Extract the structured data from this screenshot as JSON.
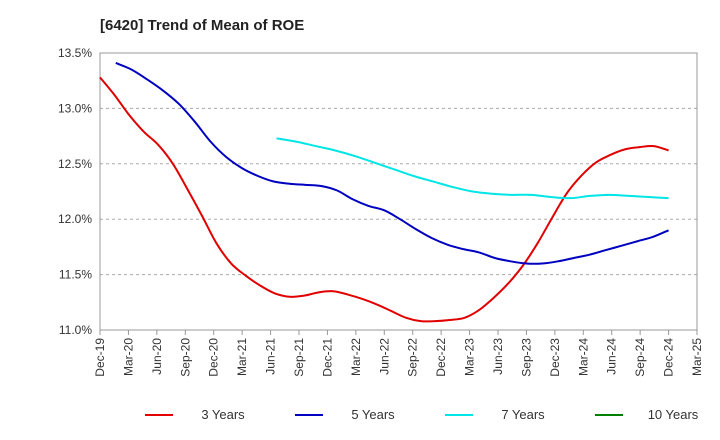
{
  "chart_data": {
    "type": "line",
    "title": "[6420]  Trend of Mean of ROE",
    "xlabel": "",
    "ylabel": "",
    "x_ticks": [
      "Dec-19",
      "Mar-20",
      "Jun-20",
      "Sep-20",
      "Dec-20",
      "Mar-21",
      "Jun-21",
      "Sep-21",
      "Dec-21",
      "Mar-22",
      "Jun-22",
      "Sep-22",
      "Dec-22",
      "Mar-23",
      "Jun-23",
      "Sep-23",
      "Dec-23",
      "Mar-24",
      "Jun-24",
      "Sep-24",
      "Dec-24",
      "Mar-25"
    ],
    "y_ticks": [
      "11.0%",
      "11.5%",
      "12.0%",
      "12.5%",
      "13.0%",
      "13.5%"
    ],
    "ylim": [
      11.0,
      13.5
    ],
    "grid": "horizontal dashed",
    "legend_position": "bottom",
    "series": [
      {
        "name": "3 Years",
        "color": "#e00000",
        "values": [
          13.28,
          13.12,
          12.94,
          12.79,
          12.67,
          12.5,
          12.27,
          12.03,
          11.78,
          11.6,
          11.49,
          11.4,
          11.33,
          11.3,
          11.31,
          11.34,
          11.35,
          11.32,
          11.28,
          11.23,
          11.17,
          11.11,
          11.08,
          11.08,
          11.09,
          11.11,
          11.18,
          11.29,
          11.42,
          11.58,
          11.78,
          12.01,
          12.23,
          12.39,
          12.51,
          12.58,
          12.63,
          12.65,
          12.66,
          12.62
        ]
      },
      {
        "name": "5 Years",
        "color": "#0000c0",
        "values": [
          null,
          13.41,
          13.35,
          13.26,
          13.16,
          13.04,
          12.88,
          12.7,
          12.56,
          12.46,
          12.39,
          12.34,
          12.32,
          12.31,
          12.3,
          12.26,
          12.18,
          12.12,
          12.08,
          12.0,
          11.91,
          11.83,
          11.77,
          11.73,
          11.7,
          11.65,
          11.62,
          11.6,
          11.6,
          11.62,
          11.65,
          11.68,
          11.72,
          11.76,
          11.8,
          11.84,
          11.9
        ]
      },
      {
        "name": "7 Years",
        "color": "#00e5e5",
        "values": [
          null,
          null,
          null,
          null,
          null,
          null,
          null,
          null,
          null,
          12.73,
          12.7,
          12.66,
          12.62,
          12.57,
          12.51,
          12.45,
          12.39,
          12.34,
          12.29,
          12.25,
          12.23,
          12.22,
          12.22,
          12.2,
          12.19,
          12.21,
          12.22,
          12.21,
          12.2,
          12.19
        ]
      },
      {
        "name": "10 Years",
        "color": "#008000",
        "values": []
      }
    ]
  }
}
